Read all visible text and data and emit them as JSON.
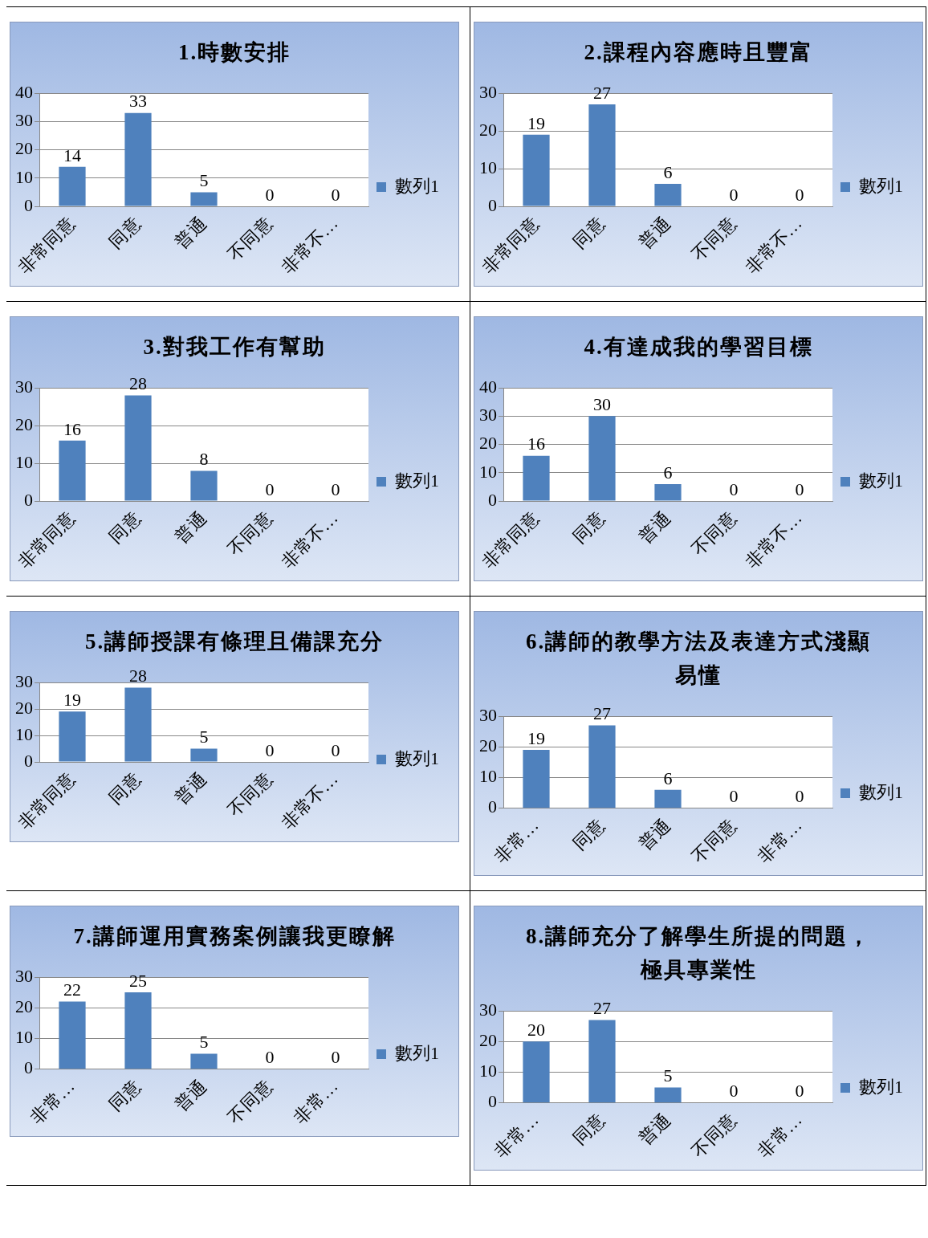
{
  "chart_data": [
    {
      "type": "bar",
      "title": "1.時數安排",
      "categories": [
        "非常同意",
        "同意",
        "普通",
        "不同意",
        "非常不…"
      ],
      "series": [
        {
          "name": "數列1",
          "color": "#4f81bd",
          "values": [
            14,
            33,
            5,
            0,
            0
          ]
        }
      ],
      "ylim": [
        0,
        40
      ],
      "yticks": [
        0,
        10,
        20,
        30,
        40
      ],
      "grid": "y",
      "legend": "right",
      "data_labels": true
    },
    {
      "type": "bar",
      "title": "2.課程內容應時且豐富",
      "categories": [
        "非常同意",
        "同意",
        "普通",
        "不同意",
        "非常不…"
      ],
      "series": [
        {
          "name": "數列1",
          "color": "#4f81bd",
          "values": [
            19,
            27,
            6,
            0,
            0
          ]
        }
      ],
      "ylim": [
        0,
        30
      ],
      "yticks": [
        0,
        10,
        20,
        30
      ],
      "grid": "y",
      "legend": "right",
      "data_labels": true
    },
    {
      "type": "bar",
      "title": "3.對我工作有幫助",
      "categories": [
        "非常同意",
        "同意",
        "普通",
        "不同意",
        "非常不…"
      ],
      "series": [
        {
          "name": "數列1",
          "color": "#4f81bd",
          "values": [
            16,
            28,
            8,
            0,
            0
          ]
        }
      ],
      "ylim": [
        0,
        30
      ],
      "yticks": [
        0,
        10,
        20,
        30
      ],
      "grid": "y",
      "legend": "right",
      "data_labels": true
    },
    {
      "type": "bar",
      "title": "4.有達成我的學習目標",
      "categories": [
        "非常同意",
        "同意",
        "普通",
        "不同意",
        "非常不…"
      ],
      "series": [
        {
          "name": "數列1",
          "color": "#4f81bd",
          "values": [
            16,
            30,
            6,
            0,
            0
          ]
        }
      ],
      "ylim": [
        0,
        40
      ],
      "yticks": [
        0,
        10,
        20,
        30,
        40
      ],
      "grid": "y",
      "legend": "right",
      "data_labels": true
    },
    {
      "type": "bar",
      "title": "5.講師授課有條理且備課充分",
      "categories": [
        "非常同意",
        "同意",
        "普通",
        "不同意",
        "非常不…"
      ],
      "series": [
        {
          "name": "數列1",
          "color": "#4f81bd",
          "values": [
            19,
            28,
            5,
            0,
            0
          ]
        }
      ],
      "ylim": [
        0,
        30
      ],
      "yticks": [
        0,
        10,
        20,
        30
      ],
      "grid": "y",
      "legend": "right",
      "data_labels": true
    },
    {
      "type": "bar",
      "title": "6.講師的教學方法及表達方式淺顯易懂",
      "categories": [
        "非常…",
        "同意",
        "普通",
        "不同意",
        "非常…"
      ],
      "series": [
        {
          "name": "數列1",
          "color": "#4f81bd",
          "values": [
            19,
            27,
            6,
            0,
            0
          ]
        }
      ],
      "ylim": [
        0,
        30
      ],
      "yticks": [
        0,
        10,
        20,
        30
      ],
      "grid": "y",
      "legend": "right",
      "data_labels": true
    },
    {
      "type": "bar",
      "title": "7.講師運用實務案例讓我更瞭解",
      "categories": [
        "非常…",
        "同意",
        "普通",
        "不同意",
        "非常…"
      ],
      "series": [
        {
          "name": "數列1",
          "color": "#4f81bd",
          "values": [
            22,
            25,
            5,
            0,
            0
          ]
        }
      ],
      "ylim": [
        0,
        30
      ],
      "yticks": [
        0,
        10,
        20,
        30
      ],
      "grid": "y",
      "legend": "right",
      "data_labels": true
    },
    {
      "type": "bar",
      "title": "8.講師充分了解學生所提的問題，極具專業性",
      "categories": [
        "非常…",
        "同意",
        "普通",
        "不同意",
        "非常…"
      ],
      "series": [
        {
          "name": "數列1",
          "color": "#4f81bd",
          "values": [
            20,
            27,
            5,
            0,
            0
          ]
        }
      ],
      "ylim": [
        0,
        30
      ],
      "yticks": [
        0,
        10,
        20,
        30
      ],
      "grid": "y",
      "legend": "right",
      "data_labels": true
    }
  ]
}
